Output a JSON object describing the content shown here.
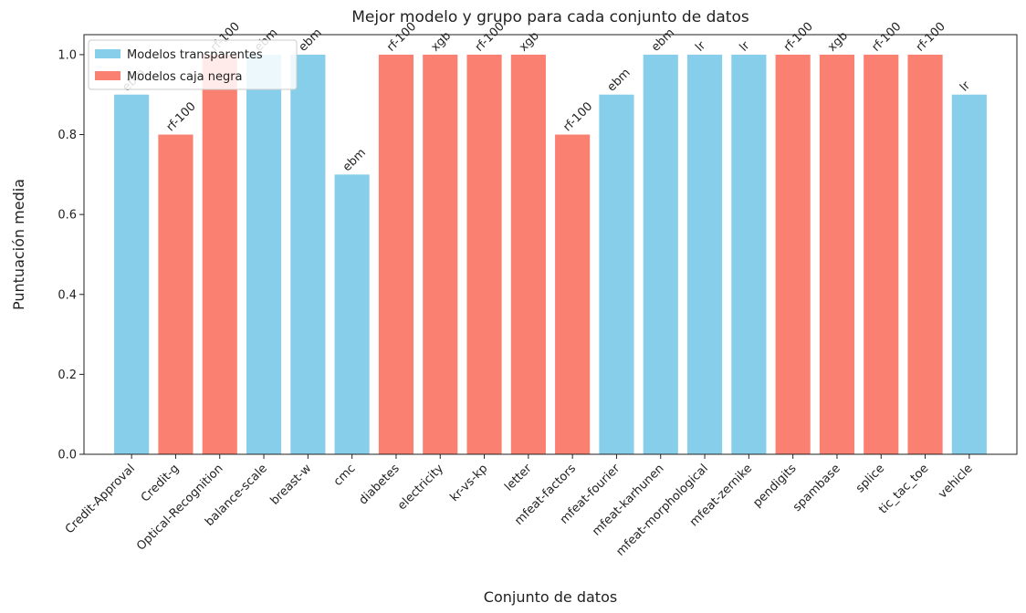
{
  "chart_data": {
    "type": "bar",
    "title": "Mejor modelo y grupo para cada conjunto de datos",
    "xlabel": "Conjunto de datos",
    "ylabel": "Puntuación media",
    "categories": [
      "Credit-Approval",
      "Credit-g",
      "Optical-Recognition",
      "balance-scale",
      "breast-w",
      "cmc",
      "diabetes",
      "electricity",
      "kr-vs-kp",
      "letter",
      "mfeat-factors",
      "mfeat-fourier",
      "mfeat-karhunen",
      "mfeat-morphological",
      "mfeat-zernike",
      "pendigits",
      "spambase",
      "splice",
      "tic_tac_toe",
      "vehicle"
    ],
    "series": [
      {
        "name": "Modelos transparentes",
        "color": "#87ceeb",
        "values": [
          0.9,
          null,
          null,
          1,
          1,
          0.7,
          null,
          null,
          null,
          null,
          null,
          0.9,
          1,
          1,
          1,
          null,
          null,
          null,
          null,
          0.9
        ]
      },
      {
        "name": "Modelos caja negra",
        "color": "#fa8072",
        "values": [
          null,
          0.8,
          1,
          null,
          null,
          null,
          1,
          1,
          1,
          1,
          0.8,
          null,
          null,
          null,
          null,
          1,
          1,
          1,
          1,
          null
        ]
      }
    ],
    "annotations": [
      "ebm",
      "rf-100",
      "rf-100",
      "ebm",
      "ebm",
      "ebm",
      "rf-100",
      "xgb",
      "rf-100",
      "xgb",
      "rf-100",
      "ebm",
      "ebm",
      "lr",
      "lr",
      "rf-100",
      "xgb",
      "rf-100",
      "rf-100",
      "lr"
    ],
    "ylim": [
      0,
      1.05
    ],
    "yticks": [
      {
        "value": 0,
        "label": "0.0"
      },
      0.2,
      0.4,
      0.6,
      0.8,
      {
        "value": 1,
        "label": "1.0"
      }
    ],
    "legend": "upper left"
  }
}
